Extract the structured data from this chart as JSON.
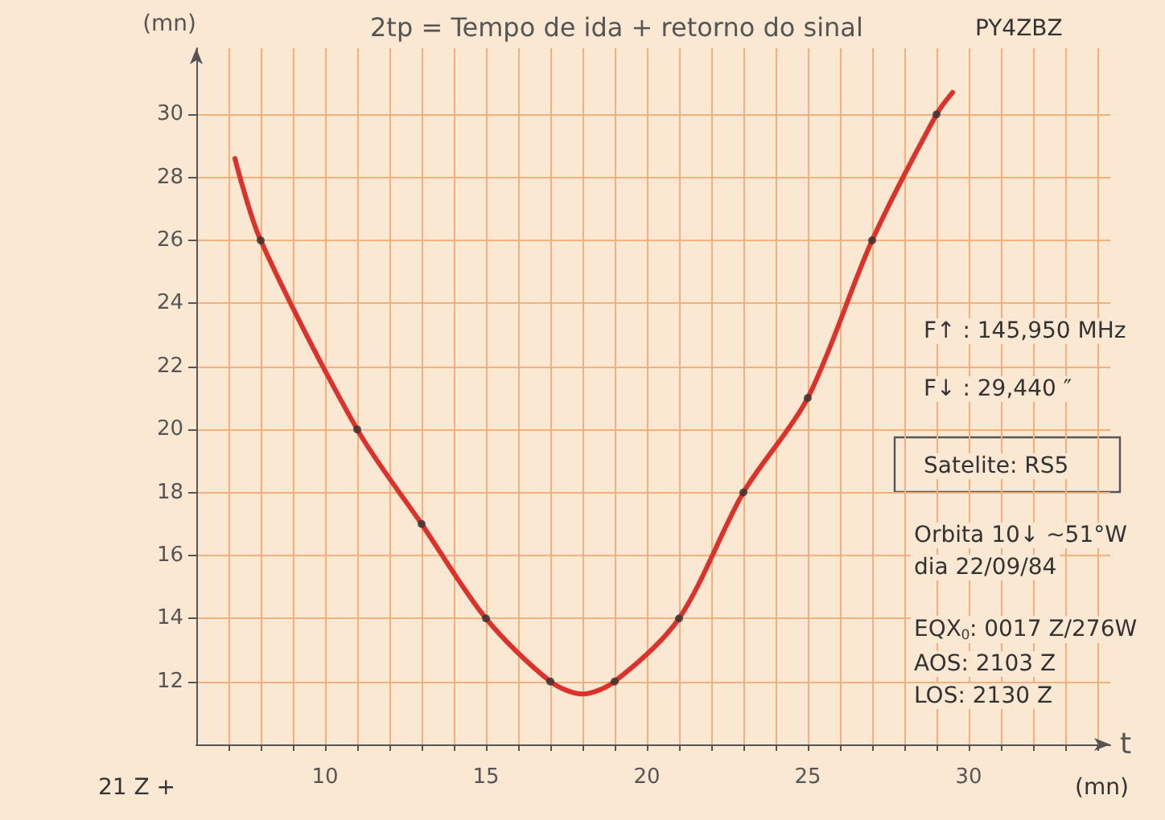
{
  "chart_data": {
    "type": "scatter",
    "title": "2tp = Tempo de ida + retorno do sinal",
    "xlabel": "t",
    "ylabel": "(mn)",
    "annotations": [
      "PY4ZBZ",
      "21 Z +",
      "(mn)",
      "F↑ : 145,950 MHz",
      "F↓ : 29,440 ″",
      "Satelite: RS5",
      "Orbita 10↓ ~51°W",
      "dia 22/09/84",
      "EQX$_{0}$: 0017 Z/276W",
      "AOS: 2103 Z",
      "LOS: 2130 Z"
    ],
    "series": [
      {
        "type": "line",
        "color": "#e0302a",
        "marker": "none",
        "x": [
          7.2,
          8,
          11,
          13,
          15,
          17,
          18,
          19,
          21,
          23,
          25,
          27,
          29,
          29.5
        ],
        "values": [
          28.6,
          26,
          20,
          17,
          14,
          12,
          11.6,
          12,
          14,
          18,
          21,
          26,
          30,
          30.7
        ]
      },
      {
        "color": "#333333",
        "marker": "circle",
        "x": [
          8,
          11,
          13,
          15,
          17,
          19,
          21,
          23,
          25,
          27,
          29
        ],
        "values": [
          26,
          20,
          17,
          14,
          12,
          12,
          14,
          18,
          21,
          26,
          30
        ]
      }
    ],
    "xlim": [
      6,
      34.4
    ],
    "ylim": [
      10,
      32.1
    ],
    "xticks": [
      {
        "value": 7,
        "label": null
      },
      {
        "value": 8,
        "label": null
      },
      {
        "value": 9,
        "label": null
      },
      10,
      {
        "value": 11,
        "label": null
      },
      {
        "value": 12,
        "label": null
      },
      {
        "value": 13,
        "label": null
      },
      {
        "value": 14,
        "label": null
      },
      15,
      {
        "value": 16,
        "label": null
      },
      {
        "value": 17,
        "label": null
      },
      {
        "value": 18,
        "label": null
      },
      {
        "value": 19,
        "label": null
      },
      20,
      {
        "value": 21,
        "label": null
      },
      {
        "value": 22,
        "label": null
      },
      {
        "value": 23,
        "label": null
      },
      {
        "value": 24,
        "label": null
      },
      25,
      {
        "value": 26,
        "label": null
      },
      {
        "value": 27,
        "label": null
      },
      {
        "value": 28,
        "label": null
      },
      {
        "value": 29,
        "label": null
      },
      30,
      {
        "value": 31,
        "label": null
      },
      {
        "value": 32,
        "label": null
      },
      {
        "value": 33,
        "label": null
      },
      {
        "value": 34,
        "label": null
      }
    ],
    "yticks": [
      12,
      14,
      16,
      18,
      20,
      22,
      24,
      26,
      28,
      30
    ],
    "grid": true
  }
}
